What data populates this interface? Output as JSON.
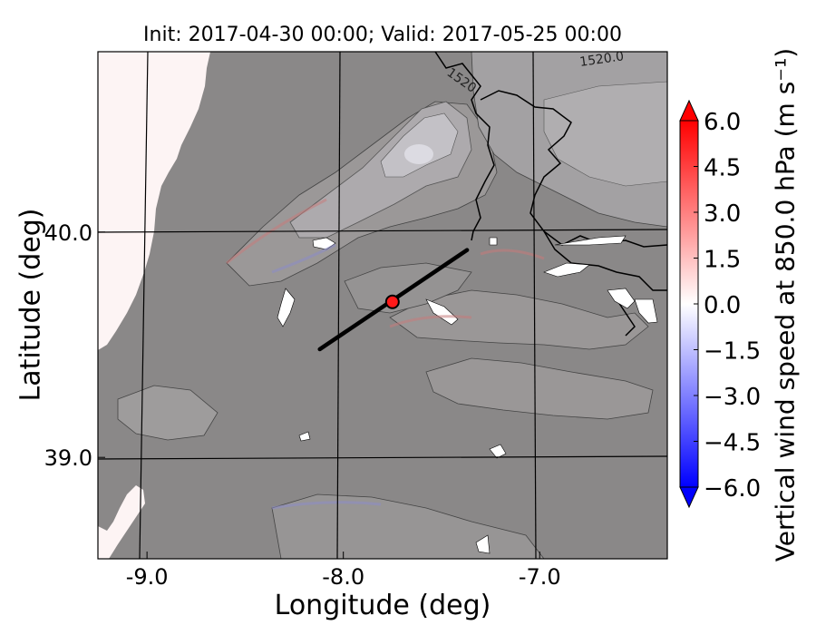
{
  "chart_data": {
    "type": "heatmap",
    "title": "Init: 2017-04-30 00:00; Valid: 2017-05-25 00:00",
    "xlabel": "Longitude (deg)",
    "ylabel": "Latitude (deg)",
    "xlim": [
      -9.25,
      -6.35
    ],
    "ylim": [
      38.55,
      40.8
    ],
    "x_ticks": [
      {
        "value": -9.0,
        "label": "-9.0"
      },
      {
        "value": -8.0,
        "label": "-8.0"
      },
      {
        "value": -7.0,
        "label": "-7.0"
      }
    ],
    "y_ticks": [
      {
        "value": 40.0,
        "label": "40.0"
      },
      {
        "value": 39.0,
        "label": "39.0"
      }
    ],
    "grid": true,
    "contour_labels": [
      "1520",
      "1520.0"
    ],
    "cross_section": {
      "start": [
        -8.12,
        39.48
      ],
      "end": [
        -7.37,
        39.92
      ]
    },
    "marker": {
      "lon": -7.75,
      "lat": 39.69
    },
    "colorbar": {
      "label": "Vertical wind speed at 850.0 hPa (m s⁻¹)",
      "min": -6.0,
      "max": 6.0,
      "ticks": [
        {
          "value": 6.0,
          "label": "6.0"
        },
        {
          "value": 4.5,
          "label": "4.5"
        },
        {
          "value": 3.0,
          "label": "3.0"
        },
        {
          "value": 1.5,
          "label": "1.5"
        },
        {
          "value": 0.0,
          "label": "0.0"
        },
        {
          "value": -1.5,
          "label": "−1.5"
        },
        {
          "value": -3.0,
          "label": "−3.0"
        },
        {
          "value": -4.5,
          "label": "−4.5"
        },
        {
          "value": -6.0,
          "label": "−6.0"
        }
      ],
      "extend": "both",
      "colors": {
        "low": "#0000ff",
        "mid": "#ffffff",
        "high": "#ff0000"
      }
    }
  }
}
